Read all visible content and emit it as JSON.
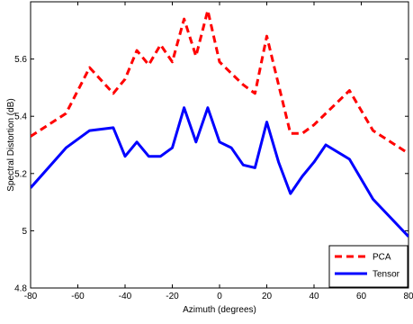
{
  "chart_data": {
    "type": "line",
    "xlabel": "Azimuth (degrees)",
    "ylabel": "Spectral Distortion (dB)",
    "xlim": [
      -80,
      80
    ],
    "ylim": [
      4.8,
      5.8
    ],
    "xticks": [
      "-80",
      "-60",
      "-40",
      "-20",
      "0",
      "20",
      "40",
      "60",
      "80"
    ],
    "yticks": [
      "4.8",
      "5",
      "5.2",
      "5.4",
      "5.6"
    ],
    "legend_position": "bottom-right",
    "grid": false,
    "x": [
      -80,
      -65,
      -55,
      -45,
      -40,
      -35,
      -30,
      -25,
      -20,
      -15,
      -10,
      -5,
      0,
      5,
      10,
      15,
      20,
      25,
      30,
      35,
      40,
      45,
      55,
      65,
      80
    ],
    "series": [
      {
        "name": "PCA",
        "color": "#ff0000",
        "style": "dashed",
        "values": [
          5.33,
          5.41,
          5.57,
          5.48,
          5.53,
          5.63,
          5.58,
          5.65,
          5.59,
          5.74,
          5.61,
          5.77,
          5.59,
          5.55,
          5.51,
          5.48,
          5.68,
          5.51,
          5.34,
          5.34,
          5.37,
          5.41,
          5.49,
          5.35,
          5.27
        ]
      },
      {
        "name": "Tensor",
        "color": "#0000ff",
        "style": "solid",
        "values": [
          5.15,
          5.29,
          5.35,
          5.36,
          5.26,
          5.31,
          5.26,
          5.26,
          5.29,
          5.43,
          5.31,
          5.43,
          5.31,
          5.29,
          5.23,
          5.22,
          5.38,
          5.24,
          5.13,
          5.19,
          5.24,
          5.3,
          5.25,
          5.11,
          4.98
        ]
      }
    ]
  }
}
